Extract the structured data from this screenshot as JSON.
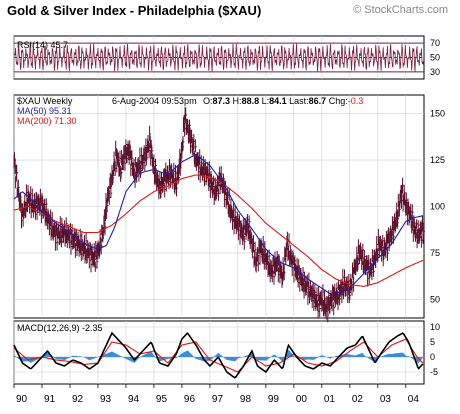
{
  "chart_data": {
    "title": "Gold & Silver Index - Philadelphia ($XAU)",
    "source": "© StockCharts.com",
    "x_ticks": [
      "90",
      "91",
      "92",
      "93",
      "94",
      "95",
      "96",
      "97",
      "98",
      "99",
      "00",
      "01",
      "02",
      "03",
      "04"
    ],
    "x_range": [
      1990.0,
      2004.65
    ],
    "rsi": {
      "type": "line",
      "label": "RSI(14)",
      "value": "45.7",
      "ylim": [
        20,
        80
      ],
      "y_ticks": [
        30,
        50,
        70
      ],
      "ref_lines": [
        30,
        50,
        70
      ],
      "colors": {
        "series": "#7a1f3f",
        "ref": "#7a1f3f"
      }
    },
    "price": {
      "type": "bar",
      "symbol_label": "$XAU Weekly",
      "date": "6-Aug-2004 09:53pm",
      "open_label": "O:",
      "open": "87.3",
      "high_label": "H:",
      "high": "88.8",
      "low_label": "L:",
      "low": "84.1",
      "last_label": "Last:",
      "last": "86.7",
      "chg_label": "Chg:",
      "chg": "-0.3",
      "ma50_label": "MA(50)",
      "ma50_value": "95.31",
      "ma200_label": "MA(200)",
      "ma200_value": "71.30",
      "ylim": [
        40,
        160
      ],
      "y_ticks": [
        50,
        75,
        100,
        125,
        150
      ],
      "colors": {
        "bars": "#5a0f2a",
        "ma50": "#1f1fb0",
        "ma200": "#e01818",
        "chg": "#e01818"
      },
      "close_keypoints": [
        [
          1990.0,
          125
        ],
        [
          1990.15,
          108
        ],
        [
          1990.3,
          95
        ],
        [
          1990.5,
          105
        ],
        [
          1990.7,
          100
        ],
        [
          1990.9,
          102
        ],
        [
          1991.1,
          98
        ],
        [
          1991.3,
          90
        ],
        [
          1991.5,
          85
        ],
        [
          1991.8,
          86
        ],
        [
          1992.0,
          84
        ],
        [
          1992.3,
          80
        ],
        [
          1992.6,
          76
        ],
        [
          1992.9,
          72
        ],
        [
          1993.05,
          78
        ],
        [
          1993.2,
          88
        ],
        [
          1993.35,
          105
        ],
        [
          1993.5,
          115
        ],
        [
          1993.65,
          128
        ],
        [
          1993.8,
          120
        ],
        [
          1993.95,
          128
        ],
        [
          1994.1,
          130
        ],
        [
          1994.3,
          118
        ],
        [
          1994.5,
          122
        ],
        [
          1994.7,
          128
        ],
        [
          1994.85,
          135
        ],
        [
          1995.0,
          120
        ],
        [
          1995.2,
          110
        ],
        [
          1995.4,
          115
        ],
        [
          1995.6,
          118
        ],
        [
          1995.8,
          112
        ],
        [
          1996.0,
          130
        ],
        [
          1996.1,
          148
        ],
        [
          1996.2,
          142
        ],
        [
          1996.35,
          135
        ],
        [
          1996.5,
          126
        ],
        [
          1996.7,
          120
        ],
        [
          1996.9,
          118
        ],
        [
          1997.05,
          112
        ],
        [
          1997.2,
          108
        ],
        [
          1997.4,
          115
        ],
        [
          1997.6,
          105
        ],
        [
          1997.8,
          95
        ],
        [
          1998.0,
          90
        ],
        [
          1998.2,
          85
        ],
        [
          1998.35,
          90
        ],
        [
          1998.5,
          80
        ],
        [
          1998.65,
          70
        ],
        [
          1998.8,
          78
        ],
        [
          1999.0,
          72
        ],
        [
          1999.2,
          65
        ],
        [
          1999.4,
          70
        ],
        [
          1999.6,
          62
        ],
        [
          1999.75,
          80
        ],
        [
          1999.9,
          72
        ],
        [
          2000.1,
          65
        ],
        [
          2000.3,
          60
        ],
        [
          2000.5,
          56
        ],
        [
          2000.7,
          52
        ],
        [
          2000.85,
          48
        ],
        [
          2001.0,
          50
        ],
        [
          2001.15,
          45
        ],
        [
          2001.35,
          50
        ],
        [
          2001.6,
          53
        ],
        [
          2001.8,
          58
        ],
        [
          2002.0,
          55
        ],
        [
          2002.2,
          68
        ],
        [
          2002.35,
          76
        ],
        [
          2002.5,
          70
        ],
        [
          2002.7,
          65
        ],
        [
          2002.9,
          72
        ],
        [
          2003.05,
          80
        ],
        [
          2003.2,
          76
        ],
        [
          2003.4,
          82
        ],
        [
          2003.55,
          88
        ],
        [
          2003.7,
          95
        ],
        [
          2003.85,
          108
        ],
        [
          2003.95,
          104
        ],
        [
          2004.05,
          98
        ],
        [
          2004.15,
          96
        ],
        [
          2004.3,
          88
        ],
        [
          2004.45,
          85
        ],
        [
          2004.6,
          87
        ]
      ],
      "ma50_keypoints": [
        [
          1990.0,
          104
        ],
        [
          1990.3,
          108
        ],
        [
          1990.6,
          104
        ],
        [
          1991.0,
          97
        ],
        [
          1991.5,
          91
        ],
        [
          1992.0,
          86
        ],
        [
          1992.5,
          80
        ],
        [
          1993.0,
          77
        ],
        [
          1993.3,
          79
        ],
        [
          1993.6,
          89
        ],
        [
          1994.0,
          108
        ],
        [
          1994.5,
          118
        ],
        [
          1995.0,
          120
        ],
        [
          1995.5,
          117
        ],
        [
          1996.0,
          124
        ],
        [
          1996.5,
          128
        ],
        [
          1997.0,
          122
        ],
        [
          1997.5,
          112
        ],
        [
          1998.0,
          98
        ],
        [
          1998.5,
          88
        ],
        [
          1999.0,
          77
        ],
        [
          1999.5,
          70
        ],
        [
          2000.0,
          67
        ],
        [
          2000.5,
          61
        ],
        [
          2001.0,
          56
        ],
        [
          2001.3,
          53
        ],
        [
          2001.7,
          54
        ],
        [
          2002.0,
          56
        ],
        [
          2002.5,
          64
        ],
        [
          2003.0,
          72
        ],
        [
          2003.5,
          80
        ],
        [
          2004.0,
          92
        ],
        [
          2004.3,
          94
        ],
        [
          2004.6,
          95
        ]
      ],
      "ma200_keypoints": [
        [
          1990.0,
          98
        ],
        [
          1990.5,
          100
        ],
        [
          1991.0,
          96
        ],
        [
          1991.5,
          92
        ],
        [
          1992.0,
          89
        ],
        [
          1992.5,
          86
        ],
        [
          1993.0,
          86
        ],
        [
          1993.5,
          90
        ],
        [
          1994.0,
          96
        ],
        [
          1994.5,
          103
        ],
        [
          1995.0,
          108
        ],
        [
          1995.5,
          111
        ],
        [
          1996.0,
          115
        ],
        [
          1996.5,
          117
        ],
        [
          1997.0,
          116
        ],
        [
          1997.5,
          112
        ],
        [
          1998.0,
          106
        ],
        [
          1998.5,
          99
        ],
        [
          1999.0,
          91
        ],
        [
          1999.5,
          85
        ],
        [
          2000.0,
          79
        ],
        [
          2000.5,
          73
        ],
        [
          2001.0,
          66
        ],
        [
          2001.5,
          61
        ],
        [
          2002.0,
          58
        ],
        [
          2002.5,
          57
        ],
        [
          2003.0,
          59
        ],
        [
          2003.5,
          63
        ],
        [
          2004.0,
          67
        ],
        [
          2004.6,
          71
        ]
      ]
    },
    "macd": {
      "type": "line",
      "label": "MACD(12,26,9)",
      "value": "-2.35",
      "ylim": [
        -9,
        12
      ],
      "y_ticks": [
        -5,
        0,
        5,
        10
      ],
      "colors": {
        "macd": "#000000",
        "signal": "#e01818",
        "histogram": "#3a8fd8"
      },
      "macd_keypoints": [
        [
          1990.0,
          4
        ],
        [
          1990.3,
          -2
        ],
        [
          1990.6,
          -4
        ],
        [
          1990.9,
          -1
        ],
        [
          1991.2,
          2
        ],
        [
          1991.5,
          -2
        ],
        [
          1991.8,
          -3
        ],
        [
          1992.1,
          -1
        ],
        [
          1992.4,
          -2
        ],
        [
          1992.7,
          -4
        ],
        [
          1993.0,
          -2
        ],
        [
          1993.3,
          4
        ],
        [
          1993.5,
          8
        ],
        [
          1993.7,
          6
        ],
        [
          1994.0,
          3
        ],
        [
          1994.3,
          -1
        ],
        [
          1994.6,
          2
        ],
        [
          1994.9,
          5
        ],
        [
          1995.2,
          -2
        ],
        [
          1995.5,
          -3
        ],
        [
          1995.8,
          1
        ],
        [
          1996.0,
          6
        ],
        [
          1996.2,
          8
        ],
        [
          1996.5,
          4
        ],
        [
          1996.8,
          -1
        ],
        [
          1997.0,
          -3
        ],
        [
          1997.3,
          0
        ],
        [
          1997.6,
          -5
        ],
        [
          1997.9,
          -7
        ],
        [
          1998.2,
          -3
        ],
        [
          1998.5,
          2
        ],
        [
          1998.7,
          -3
        ],
        [
          1999.0,
          -5
        ],
        [
          1999.3,
          -1
        ],
        [
          1999.6,
          -4
        ],
        [
          1999.8,
          4
        ],
        [
          2000.1,
          0
        ],
        [
          2000.4,
          -3
        ],
        [
          2000.7,
          -4
        ],
        [
          2001.0,
          -2
        ],
        [
          2001.3,
          -3
        ],
        [
          2001.6,
          0
        ],
        [
          2001.9,
          3
        ],
        [
          2002.2,
          4
        ],
        [
          2002.45,
          7
        ],
        [
          2002.7,
          2
        ],
        [
          2002.9,
          -2
        ],
        [
          2003.1,
          1
        ],
        [
          2003.4,
          5
        ],
        [
          2003.7,
          7
        ],
        [
          2003.9,
          8
        ],
        [
          2004.1,
          5
        ],
        [
          2004.3,
          0
        ],
        [
          2004.45,
          -4
        ],
        [
          2004.6,
          -2.35
        ]
      ],
      "signal_keypoints": [
        [
          1990.0,
          3
        ],
        [
          1990.5,
          -1
        ],
        [
          1991.0,
          0
        ],
        [
          1991.5,
          -1
        ],
        [
          1992.0,
          -1.5
        ],
        [
          1992.5,
          -2.5
        ],
        [
          1993.0,
          -2
        ],
        [
          1993.5,
          5
        ],
        [
          1994.0,
          4
        ],
        [
          1994.5,
          1
        ],
        [
          1995.0,
          2
        ],
        [
          1995.5,
          -2
        ],
        [
          1996.0,
          4
        ],
        [
          1996.5,
          5
        ],
        [
          1997.0,
          -1
        ],
        [
          1997.5,
          -3
        ],
        [
          1998.0,
          -5
        ],
        [
          1998.5,
          0
        ],
        [
          1999.0,
          -3
        ],
        [
          1999.5,
          -2
        ],
        [
          2000.0,
          1
        ],
        [
          2000.5,
          -2
        ],
        [
          2001.0,
          -3
        ],
        [
          2001.5,
          -1.5
        ],
        [
          2002.0,
          2
        ],
        [
          2002.5,
          5
        ],
        [
          2003.0,
          0
        ],
        [
          2003.5,
          4
        ],
        [
          2004.0,
          6
        ],
        [
          2004.4,
          0
        ],
        [
          2004.6,
          -2
        ]
      ]
    }
  }
}
